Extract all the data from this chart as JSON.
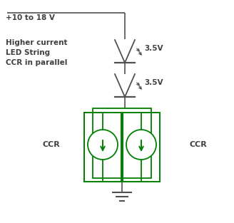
{
  "bg_color": "#ffffff",
  "wire_color": "#505050",
  "green_color": "#008000",
  "text_color": "#404040",
  "title_text": "+10 to 18 V",
  "label_text": "Higher current\nLED String\nCCR in parallel",
  "ccr_left": "CCR",
  "ccr_right": "CCR",
  "v1_label": "3.5V",
  "v2_label": "3.5V",
  "figw": 3.28,
  "figh": 3.13,
  "dpi": 100
}
